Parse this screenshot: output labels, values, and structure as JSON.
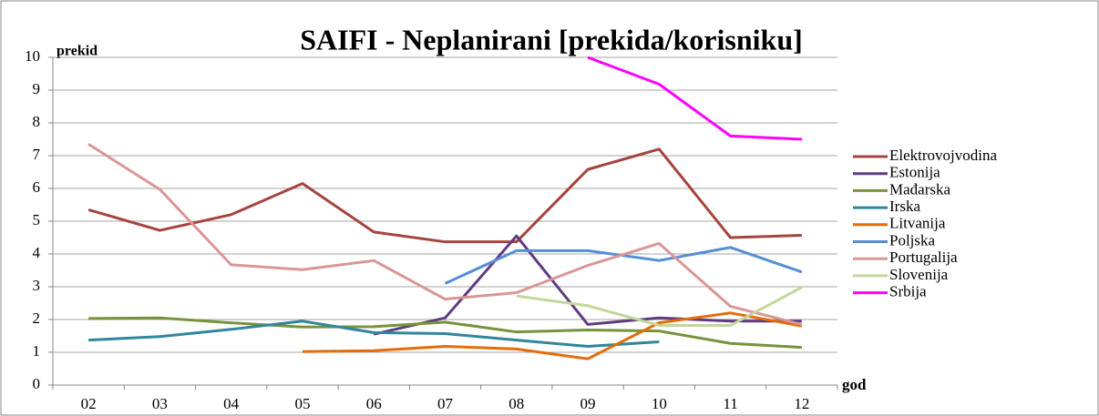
{
  "chart_data": {
    "type": "line",
    "title": "SAIFI - Neplanirani [prekida/korisniku]",
    "y_label": "prekid",
    "x_label": "god",
    "categories": [
      "02",
      "03",
      "04",
      "05",
      "06",
      "07",
      "08",
      "09",
      "10",
      "11",
      "12"
    ],
    "ylim": [
      0,
      10
    ],
    "yticks": [
      0,
      1,
      2,
      3,
      4,
      5,
      6,
      7,
      8,
      9,
      10
    ],
    "grid": true,
    "legend": "right",
    "series": [
      {
        "name": "Elektrovojvodina",
        "color": "#a5443f",
        "values": [
          5.35,
          4.72,
          5.2,
          6.15,
          4.67,
          4.37,
          4.37,
          6.58,
          7.2,
          4.5,
          4.57
        ]
      },
      {
        "name": "Estonija",
        "color": "#5f3b80",
        "values": [
          null,
          null,
          null,
          null,
          1.55,
          2.05,
          4.55,
          1.85,
          2.05,
          1.95,
          1.95
        ]
      },
      {
        "name": "Mađarska",
        "color": "#77933c",
        "values": [
          2.03,
          2.05,
          1.9,
          1.77,
          1.78,
          1.92,
          1.62,
          1.68,
          1.65,
          1.27,
          1.15
        ]
      },
      {
        "name": "Irska",
        "color": "#31859c",
        "values": [
          1.37,
          1.48,
          1.7,
          1.95,
          1.6,
          1.57,
          1.37,
          1.18,
          1.32,
          null,
          null
        ]
      },
      {
        "name": "Litvanija",
        "color": "#e46c0a",
        "values": [
          null,
          null,
          null,
          1.02,
          1.05,
          1.18,
          1.1,
          0.8,
          1.9,
          2.2,
          1.8
        ]
      },
      {
        "name": "Poljska",
        "color": "#558ed5",
        "values": [
          null,
          null,
          null,
          null,
          null,
          3.1,
          4.1,
          4.1,
          3.8,
          4.2,
          3.45
        ]
      },
      {
        "name": "Portugalija",
        "color": "#d99694",
        "values": [
          7.35,
          5.97,
          3.67,
          3.52,
          3.8,
          2.62,
          2.82,
          3.65,
          4.32,
          2.4,
          1.85
        ]
      },
      {
        "name": "Slovenija",
        "color": "#c3d69b",
        "values": [
          null,
          null,
          null,
          null,
          null,
          null,
          2.72,
          2.42,
          1.82,
          1.82,
          2.98
        ]
      },
      {
        "name": "Srbija",
        "color": "#ff00ff",
        "values": [
          null,
          null,
          null,
          null,
          null,
          null,
          null,
          10.0,
          9.18,
          7.6,
          7.5
        ]
      }
    ]
  }
}
